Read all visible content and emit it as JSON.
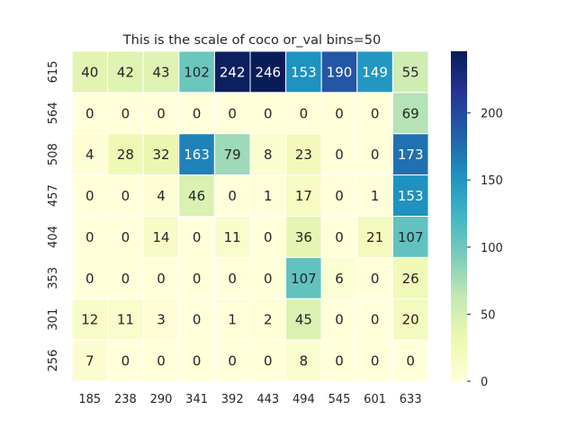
{
  "chart_data": {
    "type": "heatmap",
    "title": "This is the scale of coco or_val bins=50",
    "xlabel": "",
    "ylabel": "",
    "x_categories": [
      "185",
      "238",
      "290",
      "341",
      "392",
      "443",
      "494",
      "545",
      "601",
      "633"
    ],
    "y_categories": [
      "615",
      "564",
      "508",
      "457",
      "404",
      "353",
      "301",
      "256"
    ],
    "values": [
      [
        40,
        42,
        43,
        102,
        242,
        246,
        153,
        190,
        149,
        55
      ],
      [
        0,
        0,
        0,
        0,
        0,
        0,
        0,
        0,
        0,
        69
      ],
      [
        4,
        28,
        32,
        163,
        79,
        8,
        23,
        0,
        0,
        173
      ],
      [
        0,
        0,
        4,
        46,
        0,
        1,
        17,
        0,
        1,
        153
      ],
      [
        0,
        0,
        14,
        0,
        11,
        0,
        36,
        0,
        21,
        107
      ],
      [
        0,
        0,
        0,
        0,
        0,
        0,
        107,
        6,
        0,
        26
      ],
      [
        12,
        11,
        3,
        0,
        1,
        2,
        45,
        0,
        0,
        20
      ],
      [
        7,
        0,
        0,
        0,
        0,
        0,
        8,
        0,
        0,
        0
      ]
    ],
    "colormap": "YlGnBu",
    "vmin": 0,
    "vmax": 246,
    "colorbar_ticks": [
      "0",
      "50",
      "100",
      "150",
      "200"
    ],
    "cell_border_color": "#ffffff",
    "text_color_dark": "#262626",
    "text_color_light": "#ffffff"
  }
}
